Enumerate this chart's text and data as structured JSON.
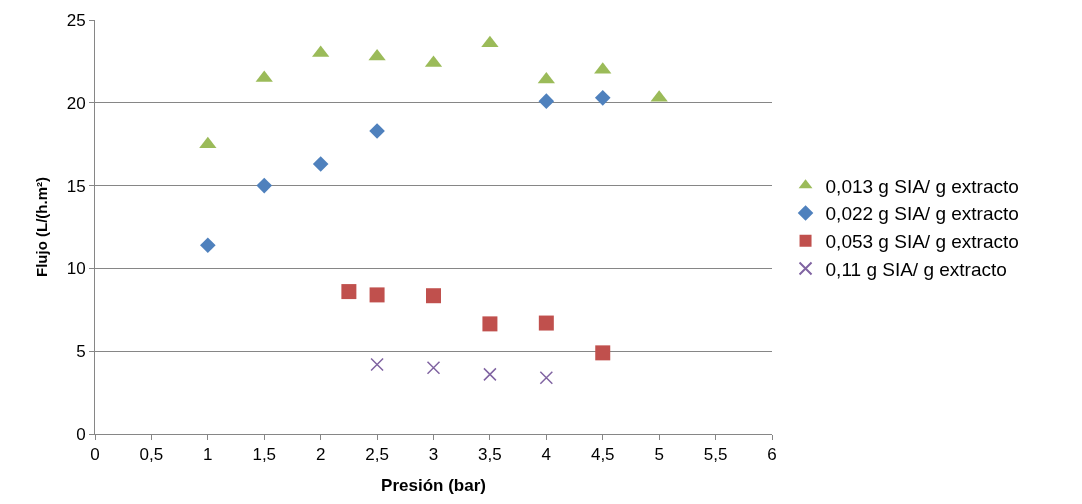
{
  "chart_data": {
    "type": "scatter",
    "xlabel": "Presión (bar)",
    "ylabel": "Flujo (L/(h.m²)",
    "xlim": [
      0,
      6
    ],
    "xticks": [
      0,
      {
        "value": 0.5,
        "label": "0,5"
      },
      1,
      {
        "value": 1.5,
        "label": "1,5"
      },
      2,
      {
        "value": 2.5,
        "label": "2,5"
      },
      3,
      {
        "value": 3.5,
        "label": "3,5"
      },
      4,
      {
        "value": 4.5,
        "label": "4,5"
      },
      5,
      {
        "value": 5.5,
        "label": "5,5"
      },
      6
    ],
    "ylim": [
      0,
      25
    ],
    "yticks": [
      0,
      5,
      10,
      15,
      20,
      25
    ],
    "grid": "y",
    "legend": "right",
    "series": [
      {
        "name": "0,013 g SIA/ g extracto",
        "color": "#9bbb59",
        "marker": "triangle",
        "x": [
          1,
          1.5,
          2,
          2.5,
          3,
          3.5,
          4,
          4.5,
          5
        ],
        "values": [
          17.5,
          21.5,
          23,
          22.8,
          22.4,
          23.6,
          21.4,
          22,
          20.3
        ]
      },
      {
        "name": "0,022 g SIA/ g extracto",
        "color": "#4f81bd",
        "marker": "diamond",
        "x": [
          1,
          1.5,
          2,
          2.5,
          4,
          4.5
        ],
        "values": [
          11.4,
          15,
          16.3,
          18.3,
          20.1,
          20.3
        ]
      },
      {
        "name": "0,053 g SIA/ g extracto",
        "color": "#c0504d",
        "marker": "square",
        "x": [
          2.25,
          2.5,
          3,
          3.5,
          4,
          4.5
        ],
        "values": [
          8.6,
          8.4,
          8.35,
          6.65,
          6.7,
          4.9
        ]
      },
      {
        "name": "0,11 g SIA/ g extracto",
        "color": "#8064a2",
        "marker": "cross",
        "x": [
          2.5,
          3,
          3.5,
          4
        ],
        "values": [
          4.2,
          4.0,
          3.6,
          3.4
        ]
      }
    ]
  }
}
